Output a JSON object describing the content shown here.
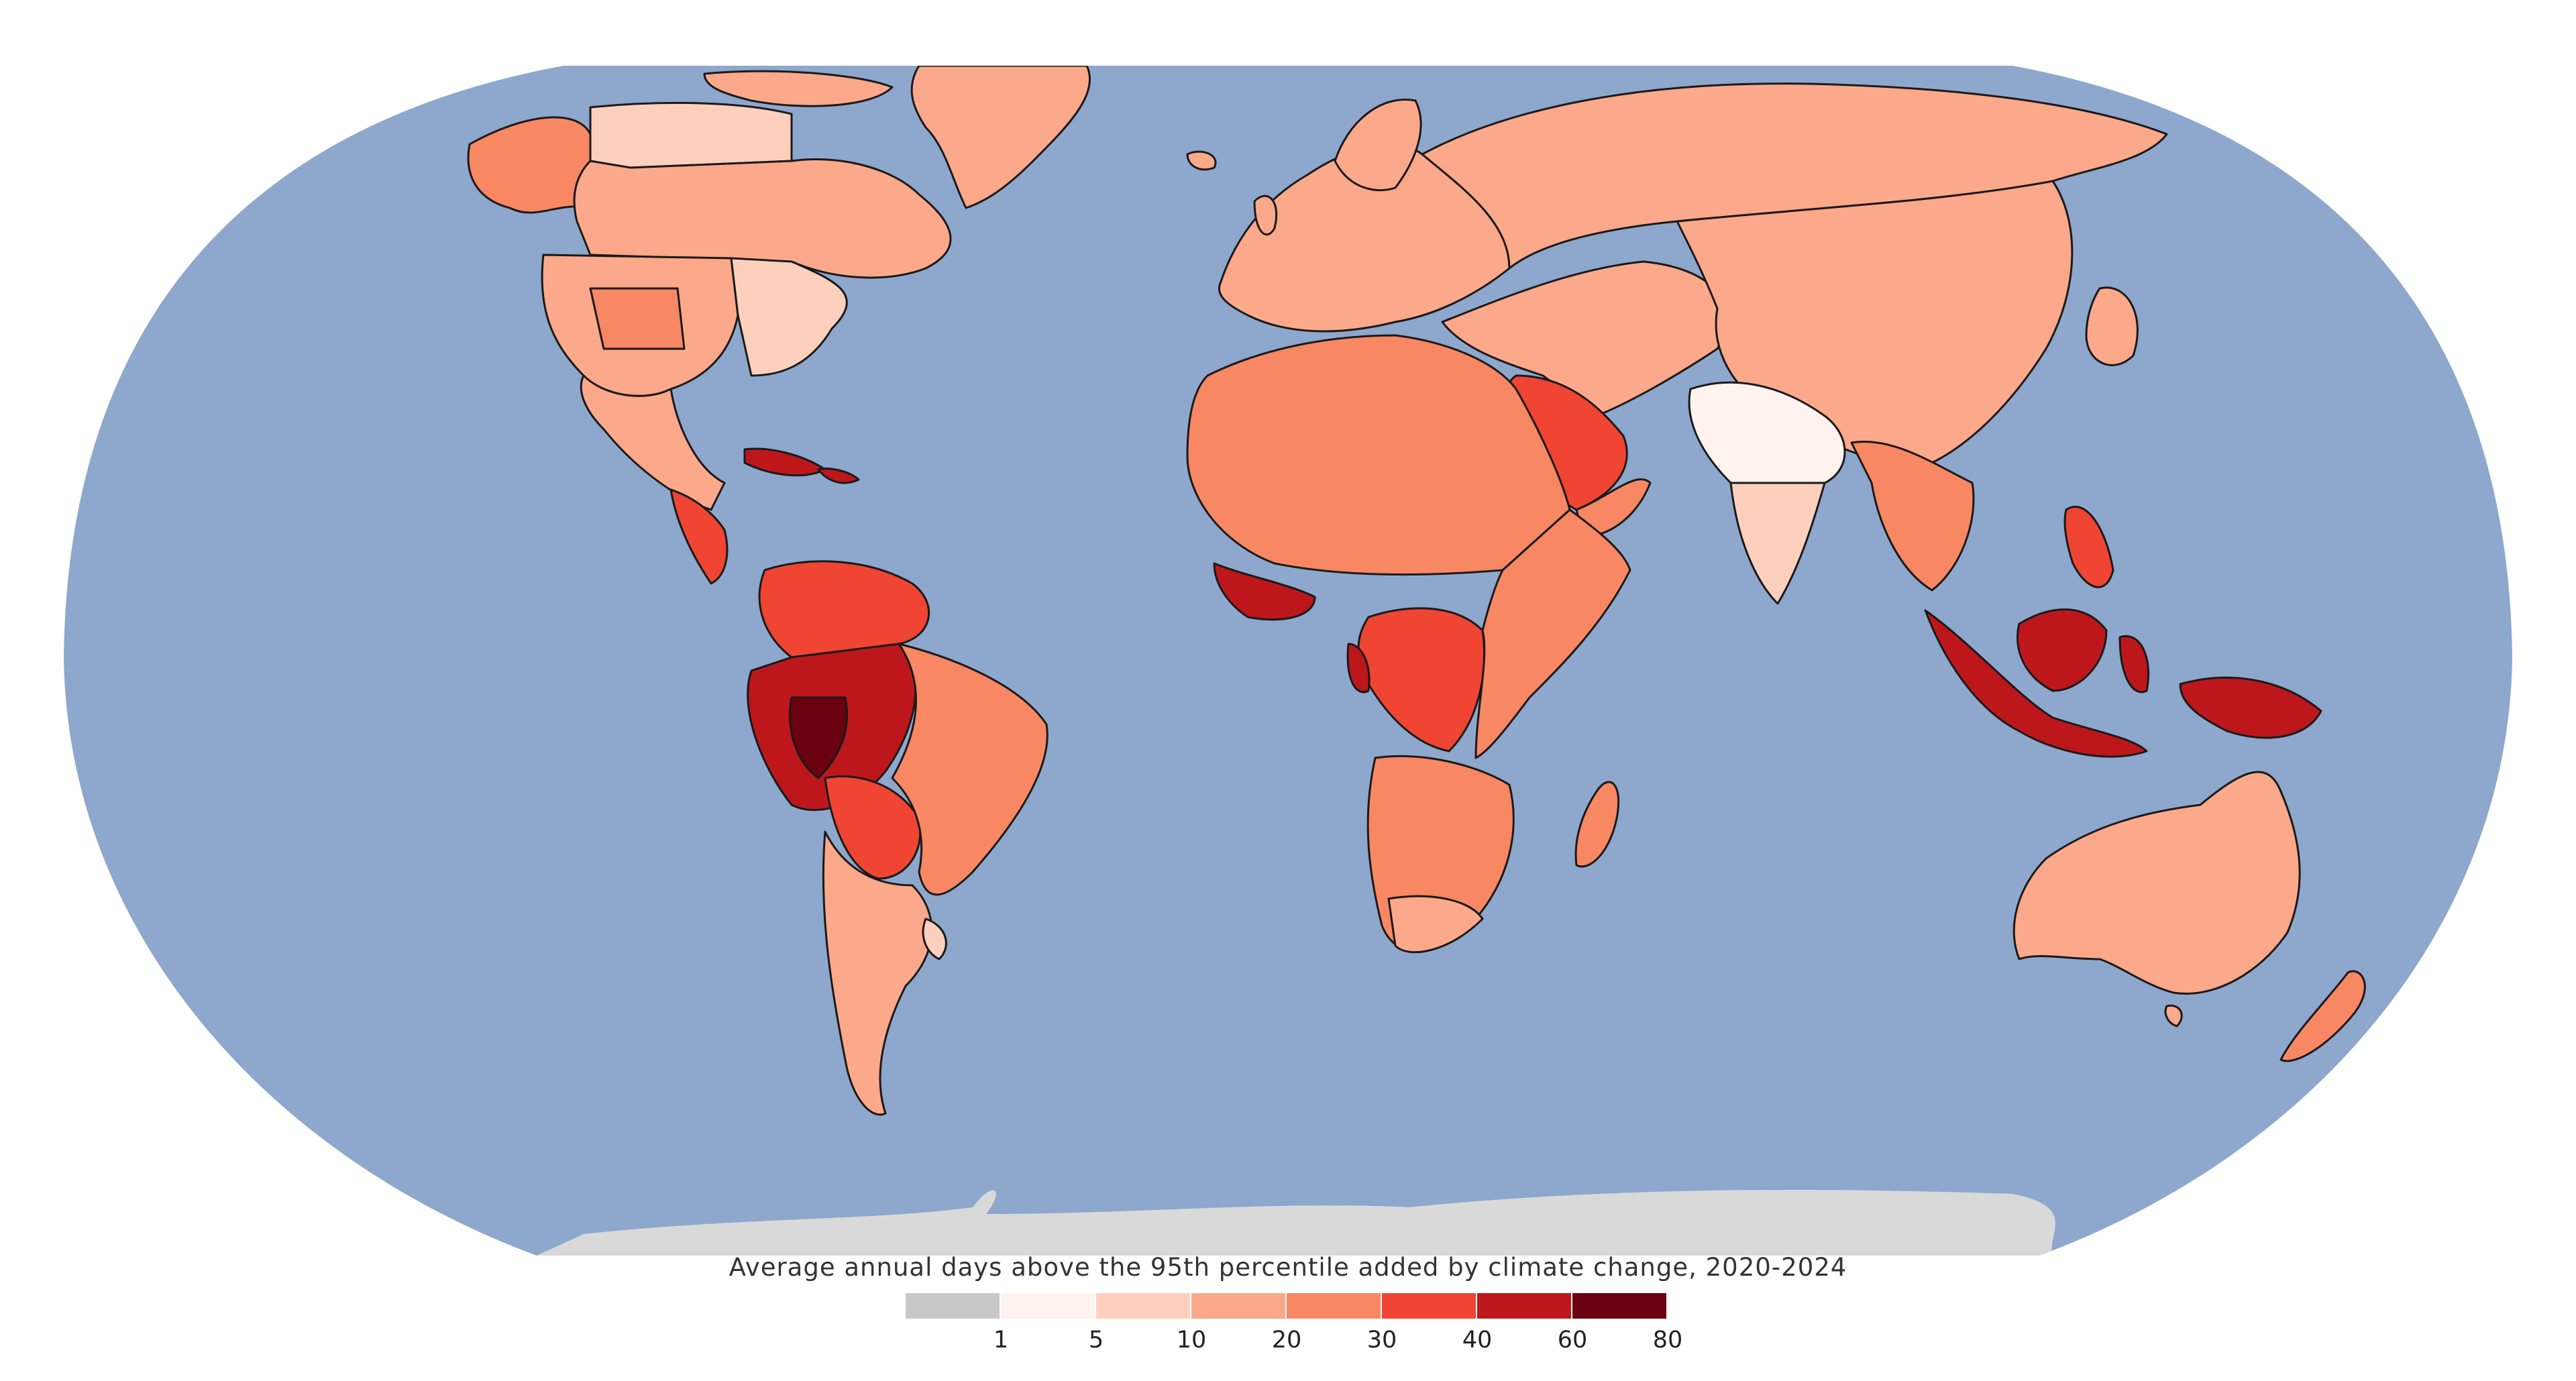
{
  "map": {
    "projection": "Robinson (world, Pacific-excluded, Greenwich-centered)",
    "ocean_color": "#8ea7cc",
    "antarctica_color": "#d9d9d9",
    "border_color": "#000000",
    "regions": [
      {
        "name": "Canada (northern)",
        "bin": "5-10"
      },
      {
        "name": "Canada (southern)",
        "bin": "10-20"
      },
      {
        "name": "Greenland",
        "bin": "10-20"
      },
      {
        "name": "Alaska",
        "bin": "20-30"
      },
      {
        "name": "United States (northeast & midwest)",
        "bin": "5-10"
      },
      {
        "name": "United States (west & south)",
        "bin": "10-20"
      },
      {
        "name": "Mexico",
        "bin": "10-20"
      },
      {
        "name": "Central America",
        "bin": "30-40"
      },
      {
        "name": "Caribbean",
        "bin": "40-60"
      },
      {
        "name": "Colombia & Venezuela",
        "bin": "30-40"
      },
      {
        "name": "Amazon basin (Peru, western Brazil)",
        "bin": "40-60"
      },
      {
        "name": "Bolivia & Paraguay",
        "bin": "30-40"
      },
      {
        "name": "Eastern Brazil",
        "bin": "20-30"
      },
      {
        "name": "Southern South America",
        "bin": "10-20"
      },
      {
        "name": "Uruguay",
        "bin": "5-10"
      },
      {
        "name": "Europe",
        "bin": "10-20"
      },
      {
        "name": "North Africa",
        "bin": "20-30"
      },
      {
        "name": "West Africa coast",
        "bin": "40-60"
      },
      {
        "name": "Central Africa (DRC, Congo)",
        "bin": "30-40"
      },
      {
        "name": "East Africa",
        "bin": "20-30"
      },
      {
        "name": "Southern Africa",
        "bin": "20-30"
      },
      {
        "name": "Madagascar",
        "bin": "20-30"
      },
      {
        "name": "Arabian Peninsula",
        "bin": "30-40"
      },
      {
        "name": "Middle East & Central Asia",
        "bin": "10-20"
      },
      {
        "name": "Russia",
        "bin": "10-20"
      },
      {
        "name": "China & Mongolia",
        "bin": "10-20"
      },
      {
        "name": "India (north)",
        "bin": "1-5"
      },
      {
        "name": "India (south)",
        "bin": "5-10"
      },
      {
        "name": "Southeast Asia mainland",
        "bin": "20-30"
      },
      {
        "name": "Philippines",
        "bin": "30-40"
      },
      {
        "name": "Indonesia",
        "bin": "40-60"
      },
      {
        "name": "Papua New Guinea",
        "bin": "40-60"
      },
      {
        "name": "Australia",
        "bin": "10-20"
      },
      {
        "name": "New Zealand",
        "bin": "20-30"
      },
      {
        "name": "Antarctica",
        "bin": "no data"
      }
    ]
  },
  "legend": {
    "title": "Average annual days above the 95th percentile added by climate change, 2020-2024",
    "bins": [
      {
        "label": "<1",
        "color": "#c8c8c8"
      },
      {
        "label": "1-5",
        "color": "#fff3ee"
      },
      {
        "label": "5-10",
        "color": "#fdd0be"
      },
      {
        "label": "10-20",
        "color": "#fca88a"
      },
      {
        "label": "20-30",
        "color": "#f88763"
      },
      {
        "label": "30-40",
        "color": "#ef4532"
      },
      {
        "label": "40-60",
        "color": "#bd171c"
      },
      {
        "label": "60-80",
        "color": "#6b0110"
      }
    ],
    "ticks": [
      "1",
      "5",
      "10",
      "20",
      "30",
      "40",
      "60",
      "80"
    ]
  }
}
